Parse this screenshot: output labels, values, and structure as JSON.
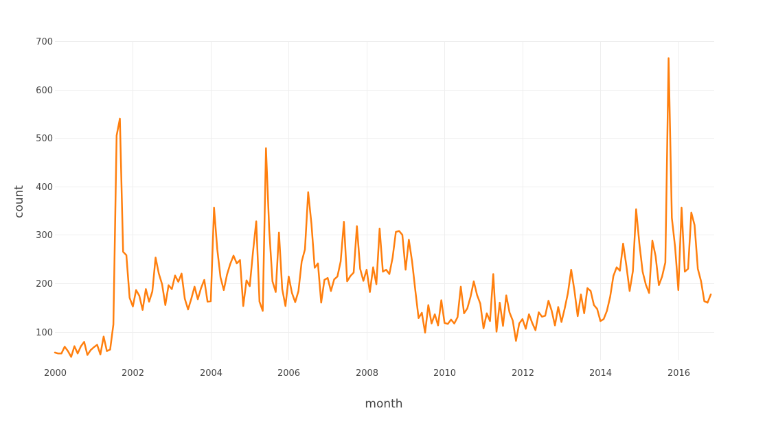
{
  "chart_data": {
    "type": "line",
    "xlabel": "month",
    "ylabel": "count",
    "x_range": [
      2000.0,
      2016.92
    ],
    "ylim": [
      20,
      700
    ],
    "x_ticks": [
      2000,
      2002,
      2004,
      2006,
      2008,
      2010,
      2012,
      2014,
      2016
    ],
    "x_tick_labels": [
      "2000",
      "2002",
      "2004",
      "2006",
      "2008",
      "2010",
      "2012",
      "2014",
      "2016"
    ],
    "y_ticks": [
      100,
      200,
      300,
      400,
      500,
      600,
      700
    ],
    "y_tick_labels": [
      "100",
      "200",
      "300",
      "400",
      "500",
      "600",
      "700"
    ],
    "grid": true,
    "legend": "none",
    "series": [
      {
        "color": "#ff7f0e",
        "start_year": 2000,
        "start_month": 1,
        "values": [
          57,
          55,
          55,
          69,
          60,
          48,
          70,
          55,
          70,
          79,
          52,
          62,
          68,
          73,
          53,
          90,
          60,
          63,
          115,
          505,
          540,
          265,
          258,
          170,
          152,
          186,
          174,
          145,
          188,
          162,
          183,
          253,
          220,
          198,
          155,
          196,
          188,
          216,
          203,
          220,
          168,
          146,
          168,
          193,
          167,
          190,
          207,
          162,
          163,
          356,
          270,
          212,
          186,
          218,
          240,
          257,
          241,
          248,
          153,
          206,
          194,
          265,
          328,
          162,
          143,
          479,
          310,
          204,
          182,
          305,
          188,
          153,
          214,
          180,
          161,
          184,
          245,
          270,
          388,
          323,
          232,
          241,
          160,
          207,
          211,
          184,
          208,
          214,
          245,
          327,
          204,
          215,
          222,
          318,
          230,
          205,
          228,
          182,
          233,
          198,
          313,
          224,
          228,
          219,
          253,
          306,
          308,
          300,
          228,
          290,
          245,
          185,
          128,
          139,
          98,
          155,
          117,
          136,
          113,
          165,
          118,
          116,
          125,
          117,
          130,
          193,
          138,
          148,
          172,
          204,
          176,
          158,
          107,
          138,
          122,
          219,
          100,
          160,
          112,
          175,
          140,
          123,
          81,
          117,
          126,
          106,
          136,
          118,
          103,
          140,
          131,
          133,
          164,
          143,
          113,
          151,
          120,
          148,
          180,
          228,
          185,
          132,
          177,
          138,
          190,
          184,
          155,
          147,
          122,
          126,
          143,
          172,
          215,
          233,
          226,
          282,
          236,
          184,
          225,
          353,
          282,
          224,
          197,
          180,
          288,
          256,
          196,
          214,
          243,
          665,
          335,
          275,
          186,
          356,
          224,
          230,
          346,
          320,
          230,
          204,
          163,
          160,
          177
        ]
      }
    ]
  }
}
